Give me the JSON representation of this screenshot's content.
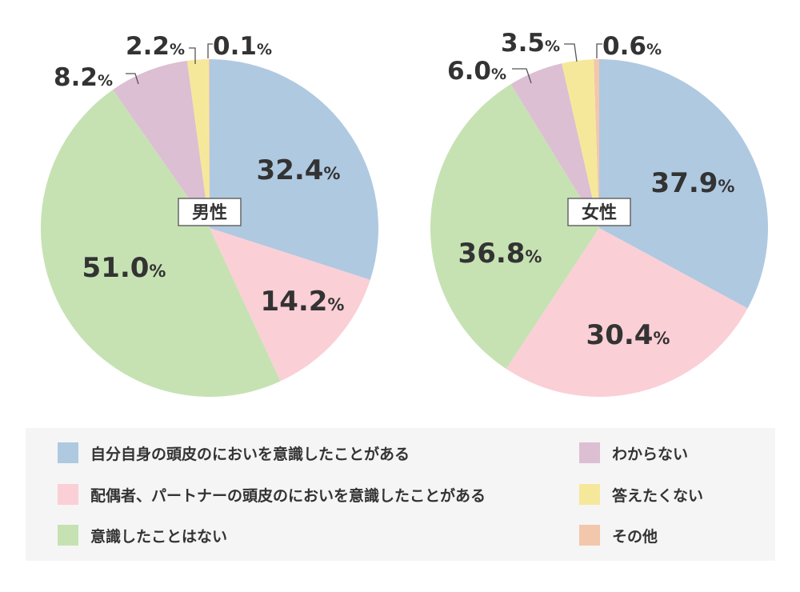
{
  "chart_data": [
    {
      "type": "pie",
      "title": "男性",
      "unit": "%",
      "values": [
        32.4,
        14.2,
        51.0,
        8.2,
        2.2,
        0.1
      ],
      "value_labels": [
        "32.4",
        "14.2",
        "51.0",
        "8.2",
        "2.2",
        "0.1"
      ]
    },
    {
      "type": "pie",
      "title": "女性",
      "unit": "%",
      "values": [
        37.9,
        30.4,
        36.8,
        6.0,
        3.5,
        0.6
      ],
      "value_labels": [
        "37.9",
        "30.4",
        "36.8",
        "6.0",
        "3.5",
        "0.6"
      ]
    }
  ],
  "categories": [
    "自分自身の頭皮のにおいを意識したことがある",
    "配偶者、パートナーの頭皮のにおいを意識したことがある",
    "意識したことはない",
    "わからない",
    "答えたくない",
    "その他"
  ],
  "colors": [
    "#afc9e1",
    "#fbcfd6",
    "#c6e2b3",
    "#dcbfd2",
    "#f6e89a",
    "#f2c7ab"
  ],
  "legend": {
    "placement": "bottom"
  }
}
